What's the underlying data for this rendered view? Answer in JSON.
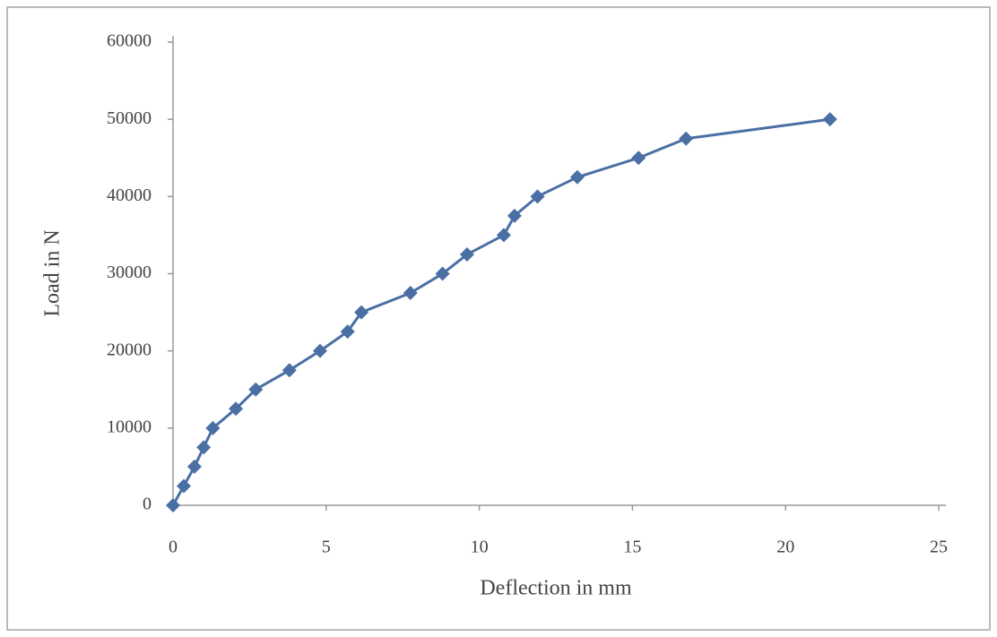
{
  "chart_data": {
    "type": "scatter-line",
    "x_label": "Deflection in mm",
    "y_label": "Load in N",
    "series": [
      {
        "color": "#4a6fa5",
        "x": [
          0,
          0.35,
          0.7,
          1.0,
          1.3,
          2.05,
          2.7,
          3.8,
          4.8,
          5.7,
          6.15,
          7.75,
          8.8,
          9.6,
          10.8,
          11.15,
          11.9,
          13.2,
          15.2,
          16.75,
          21.45
        ],
        "values": [
          0,
          2500,
          5000,
          7500,
          10000,
          12500,
          15000,
          17500,
          20000,
          22500,
          25000,
          27500,
          30000,
          32500,
          35000,
          37500,
          40000,
          42500,
          45000,
          47500,
          50000
        ]
      }
    ],
    "xlim": [
      0,
      25
    ],
    "xticks": [
      0,
      5,
      10,
      15,
      20,
      25
    ],
    "ylim": [
      0,
      60000
    ],
    "yticks": [
      0,
      10000,
      20000,
      30000,
      40000,
      50000,
      60000
    ]
  }
}
